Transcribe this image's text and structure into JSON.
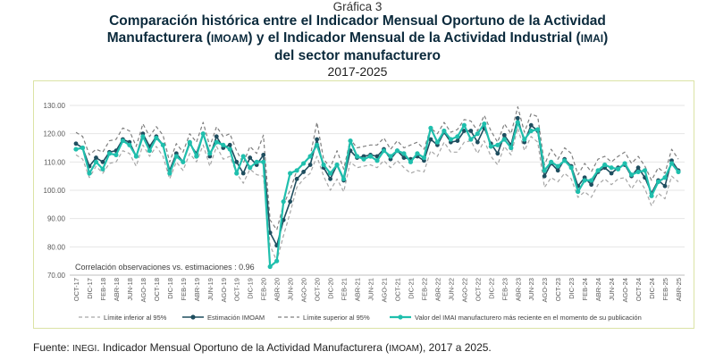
{
  "header": {
    "graph_number": "Gráfica 3",
    "title_line1": "Comparación histórica entre el Indicador Mensual Oportuno de la Actividad",
    "title_line2_a": "Manufacturera (",
    "title_line2_b": "IMOAM",
    "title_line2_c": ") y el Indicador Mensual de la Actividad Industrial (",
    "title_line2_d": "IMAI",
    "title_line2_e": ")",
    "title_line3": "del sector manufacturero",
    "years": "2017-2025"
  },
  "source": {
    "prefix": "Fuente: ",
    "org": "INEGI",
    "text_a": ". Indicador Mensual Oportuno de la Actividad Manufacturera (",
    "abbr": "IMOAM",
    "text_b": "), 2017 a 2025."
  },
  "colors": {
    "bounds": "#a6a6a6",
    "estimate": "#1f4e5f",
    "actual": "#1fbfad",
    "grid": "#e6e6e6",
    "frame": "#dbe3a5"
  },
  "chart_data": {
    "type": "line",
    "x": [
      "OCT-17",
      "NOV-17",
      "DIC-17",
      "ENE-18",
      "FEB-18",
      "MAR-18",
      "ABR-18",
      "MAY-18",
      "JUN-18",
      "JUL-18",
      "AGO-18",
      "SEP-18",
      "OCT-18",
      "NOV-18",
      "DIC-18",
      "ENE-19",
      "FEB-19",
      "MAR-19",
      "ABR-19",
      "MAY-19",
      "JUN-19",
      "JUL-19",
      "AGO-19",
      "SEP-19",
      "OCT-19",
      "NOV-19",
      "DIC-19",
      "ENE-20",
      "FEB-20",
      "MAR-20",
      "ABR-20",
      "MAY-20",
      "JUN-20",
      "JUL-20",
      "AGO-20",
      "SEP-20",
      "OCT-20",
      "NOV-20",
      "DIC-20",
      "ENE-21",
      "FEB-21",
      "MAR-21",
      "ABR-21",
      "MAY-21",
      "JUN-21",
      "JUL-21",
      "AGO-21",
      "SEP-21",
      "OCT-21",
      "NOV-21",
      "DIC-21",
      "ENE-22",
      "FEB-22",
      "MAR-22",
      "ABR-22",
      "MAY-22",
      "JUN-22",
      "JUL-22",
      "AGO-22",
      "SEP-22",
      "OCT-22",
      "NOV-22",
      "DIC-22",
      "ENE-23",
      "FEB-23",
      "MAR-23",
      "ABR-23",
      "MAY-23",
      "JUN-23",
      "JUL-23",
      "AGO-23",
      "SEP-23",
      "OCT-23",
      "NOV-23",
      "DIC-23",
      "ENE-24",
      "FEB-24",
      "MAR-24",
      "ABR-24",
      "MAY-24",
      "JUN-24",
      "JUL-24",
      "AGO-24",
      "SEP-24",
      "OCT-24",
      "NOV-24",
      "DIC-24",
      "ENE-25",
      "FEB-25",
      "MAR-25",
      "ABR-25"
    ],
    "x_tick_labels": [
      "OCT-17",
      "DIC-17",
      "FEB-18",
      "ABR-18",
      "JUN-18",
      "AGO-18",
      "OCT-18",
      "DIC-18",
      "FEB-19",
      "ABR-19",
      "JUN-19",
      "AGO-19",
      "OCT-19",
      "DIC-19",
      "FEB-20",
      "ABR-20",
      "JUN-20",
      "AGO-20",
      "OCT-20",
      "DIC-20",
      "FEB-21",
      "ABR-21",
      "JUN-21",
      "AGO-21",
      "OCT-21",
      "DIC-21",
      "FEB-22",
      "ABR-22",
      "JUN-22",
      "AGO-22",
      "OCT-22",
      "DIC-22",
      "FEB-23",
      "ABR-23",
      "JUN-23",
      "AGO-23",
      "OCT-23",
      "DIC-23",
      "FEB-24",
      "ABR-24",
      "JUN-24",
      "AGO-24",
      "OCT-24",
      "DIC-24",
      "FEB-25",
      "ABR-25"
    ],
    "y_ticks": [
      "70.00",
      "80.00",
      "90.00",
      "100.00",
      "110.00",
      "120.00",
      "130.00"
    ],
    "ylim": [
      70,
      130
    ],
    "grid": true,
    "legend_position": "bottom",
    "annotation": "Correlación observaciones vs. estimaciones :  0.96",
    "series": [
      {
        "name": "Límite inferior al 95%",
        "style": "dashed",
        "values": [
          112.5,
          111,
          104.5,
          108.5,
          106,
          109.5,
          110,
          114,
          113,
          108.5,
          116,
          112,
          115.5,
          112,
          104,
          110,
          107,
          113,
          110,
          116,
          108.5,
          115.5,
          111,
          112,
          106,
          102.5,
          107.5,
          105.5,
          105,
          80.5,
          75,
          84,
          92,
          101,
          104,
          106,
          112,
          105,
          100,
          104,
          99.5,
          110,
          108,
          108.5,
          109,
          108,
          110.5,
          108,
          110.5,
          108,
          106,
          107,
          106.5,
          114,
          112,
          117,
          113.5,
          113.5,
          117,
          117.5,
          113,
          117.5,
          112,
          109,
          115.5,
          112.5,
          122,
          114,
          119,
          117,
          101,
          104.5,
          103,
          106,
          104,
          97.5,
          99.5,
          97.5,
          102,
          104,
          102,
          104,
          104.5,
          100.5,
          104,
          100.5,
          94.5,
          99,
          97,
          105,
          103
        ]
      },
      {
        "name": "Estimación IMOAM",
        "style": "solid-marker",
        "values": [
          116.5,
          115,
          108.5,
          111.5,
          110,
          113.5,
          114,
          118,
          117,
          112,
          120,
          115.5,
          119,
          116,
          107,
          113,
          110,
          116.5,
          113,
          120,
          112,
          119,
          115,
          116,
          110,
          106,
          111.5,
          109,
          112.5,
          85,
          80.5,
          89.5,
          96,
          104,
          106.5,
          109,
          118,
          108,
          104,
          109,
          103.5,
          114,
          111.5,
          112,
          112.5,
          112,
          114.5,
          111,
          114,
          111.5,
          111,
          112,
          110.5,
          118,
          116,
          120.5,
          117,
          117.5,
          121,
          121,
          117,
          122,
          116.5,
          113,
          119.5,
          116,
          125.5,
          117,
          123,
          121,
          105,
          109.5,
          107,
          111,
          108.5,
          101.5,
          104.5,
          102,
          106.5,
          108,
          106,
          108,
          109,
          105,
          108,
          104.5,
          99,
          103.5,
          101.5,
          110.5,
          107
        ]
      },
      {
        "name": "Límite superior al 95%",
        "style": "dashed",
        "values": [
          120.5,
          119,
          112.5,
          114.5,
          113.5,
          117.5,
          118,
          122,
          121,
          115.5,
          123.5,
          119,
          122.5,
          119.5,
          110,
          116.5,
          113.5,
          120,
          117,
          124,
          115.5,
          122.5,
          119,
          120,
          114,
          109.5,
          115.5,
          113,
          119.5,
          89.5,
          86,
          95,
          100,
          107,
          109.5,
          112,
          124,
          111,
          108,
          114,
          107.5,
          118,
          115,
          115.5,
          116,
          116,
          118.5,
          114.5,
          117.5,
          115,
          116,
          117,
          114.5,
          122,
          120,
          124,
          120.5,
          121.5,
          125,
          124.5,
          121,
          126.5,
          121,
          117,
          123.5,
          120,
          129.5,
          120.5,
          127,
          126,
          109,
          114.5,
          111,
          115,
          113,
          105.5,
          109.5,
          106.5,
          111,
          112,
          110,
          112,
          113.5,
          109.5,
          112,
          108.5,
          103.5,
          108,
          106,
          114.5,
          111
        ]
      },
      {
        "name": "Valor del IMAI manufacturero más reciente en el momento de su publicación",
        "style": "solid-marker",
        "values": [
          114.5,
          115,
          106,
          110,
          107.5,
          113,
          112.5,
          117.5,
          116,
          112,
          119,
          114,
          118.5,
          116,
          106,
          112,
          110,
          117,
          112,
          120,
          113,
          117,
          116,
          114.5,
          106,
          112,
          108,
          110,
          110,
          73,
          75,
          96,
          106,
          107,
          109.5,
          112,
          116,
          109,
          106,
          109,
          104,
          117.5,
          112,
          111,
          112,
          110.5,
          114,
          112,
          114,
          113,
          110,
          113,
          111.5,
          122,
          117,
          121,
          118,
          119,
          123,
          118,
          120,
          123.5,
          115.5,
          116,
          118,
          115,
          124,
          118,
          121,
          121.5,
          107,
          110,
          108.5,
          110.5,
          108,
          99.5,
          103.5,
          103.5,
          107,
          109,
          108,
          107.5,
          109.5,
          105.5,
          106.5,
          107,
          98,
          103,
          104.5,
          109.5,
          106.5
        ]
      }
    ]
  }
}
